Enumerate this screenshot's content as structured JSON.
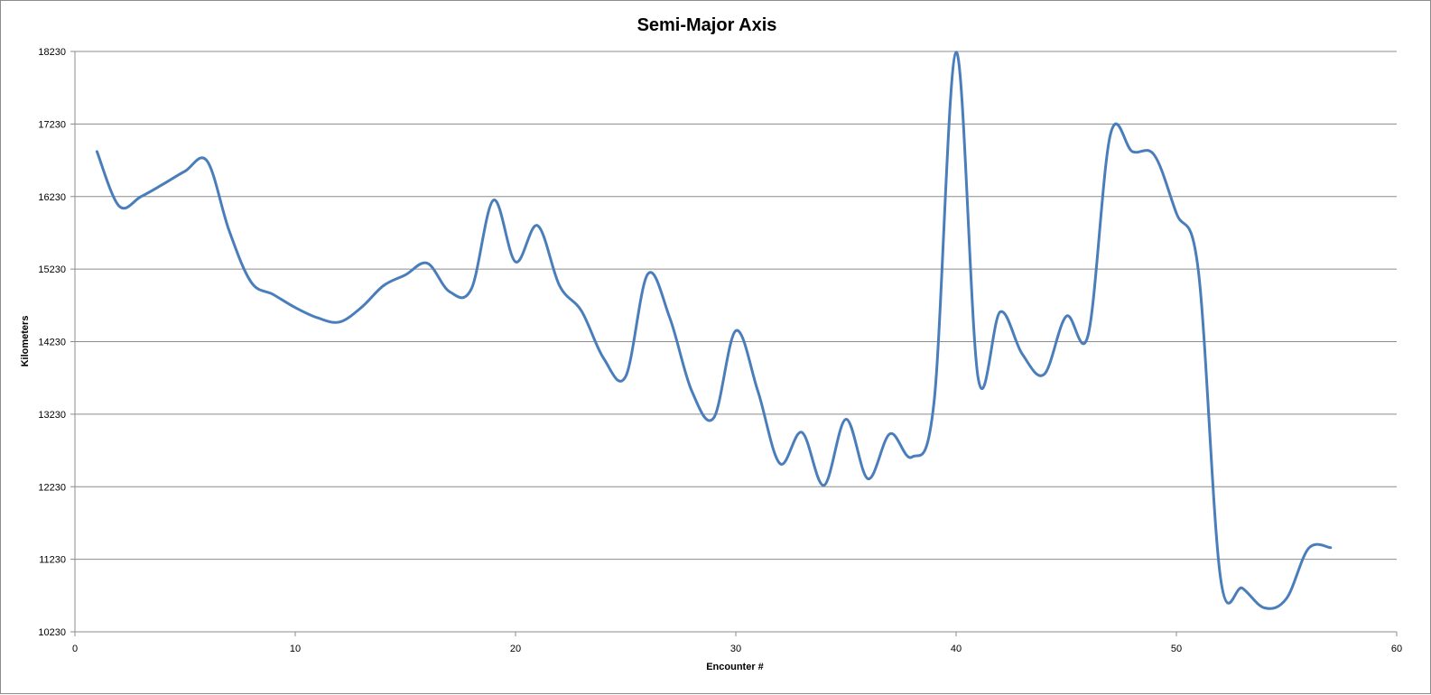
{
  "chart_data": {
    "type": "line",
    "title": "Semi-Major Axis",
    "xlabel": "Encounter #",
    "ylabel": "Kilometers",
    "xlim": [
      0,
      60
    ],
    "ylim": [
      10230,
      18230
    ],
    "x_ticks": [
      0,
      10,
      20,
      30,
      40,
      50,
      60
    ],
    "y_ticks": [
      10230,
      11230,
      12230,
      13230,
      14230,
      15230,
      16230,
      17230,
      18230
    ],
    "grid": "horizontal",
    "legend": "none",
    "series": [
      {
        "color": "#4a7ebb",
        "x": [
          1,
          2,
          3,
          4,
          5,
          6,
          7,
          8,
          9,
          10,
          11,
          12,
          13,
          14,
          15,
          16,
          17,
          18,
          19,
          20,
          21,
          22,
          23,
          24,
          25,
          26,
          27,
          28,
          29,
          30,
          31,
          32,
          33,
          34,
          35,
          36,
          37,
          38,
          39,
          40,
          41,
          42,
          43,
          44,
          45,
          46,
          47,
          48,
          49,
          50,
          51,
          52,
          53,
          54,
          55,
          56,
          57
        ],
        "values": [
          16850,
          16100,
          16230,
          16400,
          16580,
          16720,
          15760,
          15050,
          14880,
          14700,
          14560,
          14500,
          14700,
          15000,
          15150,
          15310,
          14920,
          14960,
          16180,
          15330,
          15830,
          15000,
          14650,
          14000,
          13750,
          15160,
          14560,
          13550,
          13180,
          14380,
          13550,
          12550,
          12980,
          12250,
          13160,
          12340,
          12960,
          12640,
          13400,
          18220,
          13730,
          14640,
          14060,
          13780,
          14580,
          14330,
          17080,
          16850,
          16800,
          16000,
          15200,
          10980,
          10830,
          10560,
          10690,
          11380,
          11390
        ]
      }
    ]
  }
}
